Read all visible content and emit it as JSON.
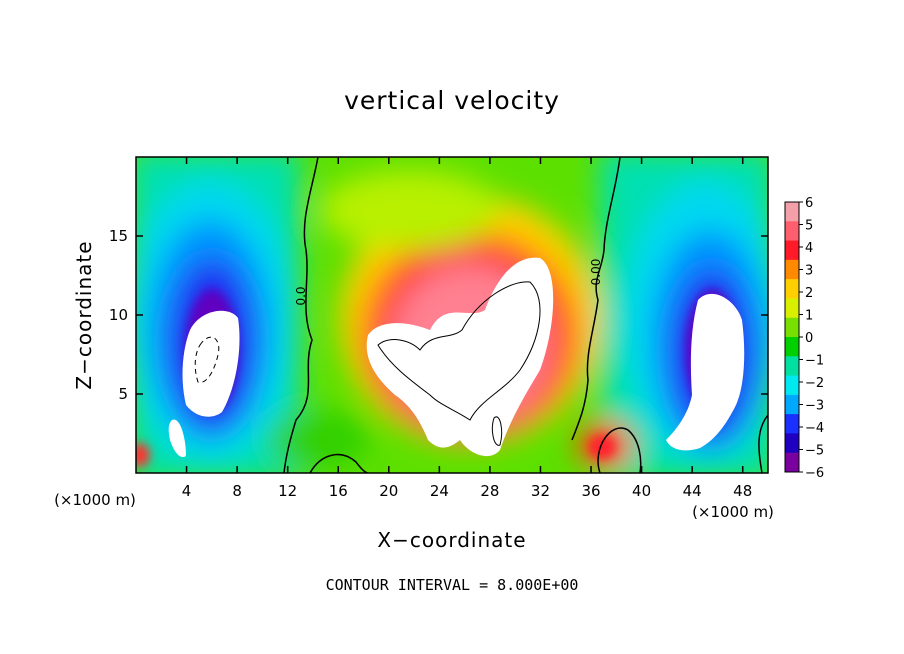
{
  "chart_data": {
    "type": "heatmap",
    "title": "vertical velocity",
    "xlabel": "X−coordinate",
    "ylabel": "Z−coordinate",
    "x_unit_left": "(×1000 m)",
    "x_unit_right": "(×1000 m)",
    "xlim": [
      0,
      50
    ],
    "ylim": [
      0,
      20
    ],
    "x_ticks": [
      4,
      8,
      12,
      16,
      20,
      24,
      28,
      32,
      36,
      40,
      44,
      48
    ],
    "y_ticks": [
      5,
      10,
      15
    ],
    "colorbar": {
      "min": -6,
      "max": 6,
      "labels": [
        "6",
        "5",
        "4",
        "3",
        "2",
        "1",
        "0",
        "−1",
        "−2",
        "−3",
        "−4",
        "−5",
        "−6"
      ],
      "colors": [
        "#f4a0a8",
        "#ff5e6e",
        "#ff1a2a",
        "#ff8a00",
        "#ffd000",
        "#d8f000",
        "#78e000",
        "#00d000",
        "#00e0a0",
        "#00e8f0",
        "#00a8ff",
        "#1a30ff",
        "#2000c0",
        "#7a00a0"
      ]
    },
    "features": [
      {
        "kind": "updraft",
        "center": [
          27,
          9.5
        ],
        "note": "central updraft core, values exceed colorbar max (white)"
      },
      {
        "kind": "downdraft",
        "center": [
          5.5,
          8.5
        ],
        "note": "left downdraft core, values below colorbar min (white)"
      },
      {
        "kind": "downdraft",
        "center": [
          45.5,
          8
        ],
        "note": "right downdraft core, values below colorbar min (white)"
      }
    ],
    "contour_labels": [
      "0.0",
      "0.00"
    ],
    "grid": false,
    "legend": "colorbar-right"
  },
  "footer": {
    "contour_interval": "CONTOUR INTERVAL = 8.000E+00"
  }
}
